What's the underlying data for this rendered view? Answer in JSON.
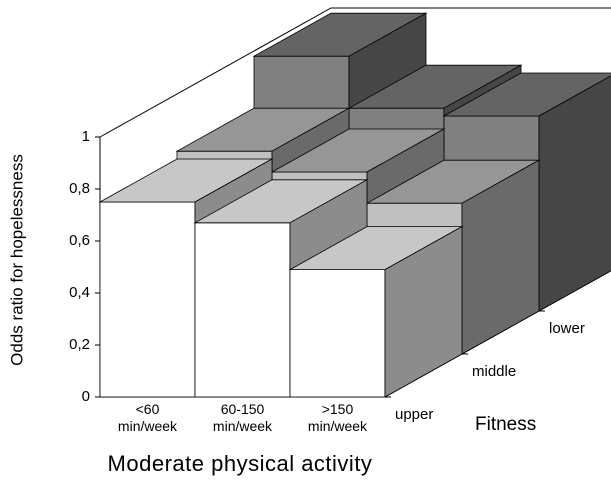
{
  "chart_data": {
    "type": "bar3d",
    "x_label": "Moderate physical activity",
    "y_label": "Odds ratio for hopelessness",
    "z_label": "Fitness",
    "categories": [
      "<60 min/week",
      "60-150 min/week",
      ">150 min/week"
    ],
    "series": [
      {
        "name": "upper",
        "color": "#ffffff",
        "values": [
          0.75,
          0.67,
          0.49
        ]
      },
      {
        "name": "middle",
        "color": "#c0c0c0",
        "values": [
          0.78,
          0.7,
          0.58
        ]
      },
      {
        "name": "lower",
        "color": "#808080",
        "values": [
          0.98,
          0.78,
          0.75
        ]
      }
    ],
    "ylim": [
      0,
      1
    ],
    "yticks": [
      0,
      {
        "value": 0.2,
        "label": "0,2"
      },
      {
        "value": 0.4,
        "label": "0,4"
      },
      {
        "value": 0.6,
        "label": "0,6"
      },
      {
        "value": 0.8,
        "label": "0,8"
      },
      1
    ]
  }
}
